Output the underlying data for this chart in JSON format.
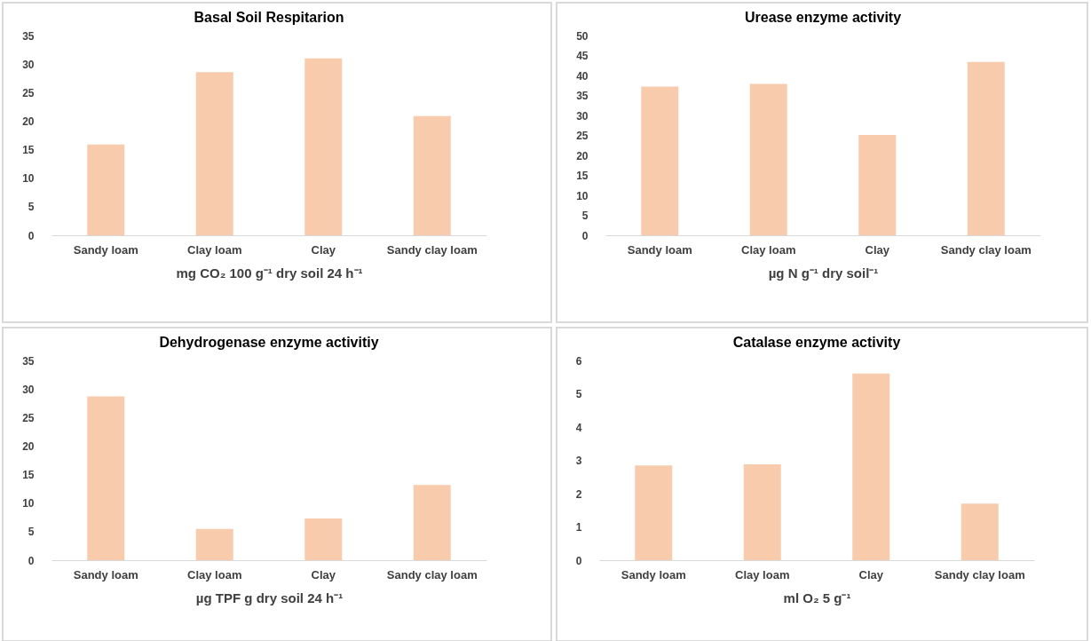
{
  "chart_data": [
    {
      "type": "bar",
      "title": "Basal Soil Respitarion",
      "xlabel": "mg CO₂ 100 g⁻¹  dry soil 24 h⁻¹",
      "categories": [
        "Sandy loam",
        "Clay loam",
        "Clay",
        "Sandy clay loam"
      ],
      "values": [
        15.9,
        28.6,
        31.0,
        20.9
      ],
      "color": "#f8cbad",
      "ylim": [
        0,
        35
      ],
      "yticks": [
        0,
        5,
        10,
        15,
        20,
        25,
        30,
        35
      ]
    },
    {
      "type": "bar",
      "title": "Urease enzyme activity",
      "xlabel": "µg N g⁻¹ dry soil⁻¹",
      "categories": [
        "Sandy loam",
        "Clay loam",
        "Clay",
        "Sandy clay loam"
      ],
      "values": [
        37.2,
        37.9,
        25.1,
        43.4
      ],
      "color": "#f8cbad",
      "ylim": [
        0,
        50
      ],
      "yticks": [
        0,
        5,
        10,
        15,
        20,
        25,
        30,
        35,
        40,
        45,
        50
      ]
    },
    {
      "type": "bar",
      "title": "Dehydrogenase enzyme activitiy",
      "xlabel": "µg TPF g dry soil 24 h⁻¹",
      "categories": [
        "Sandy loam",
        "Clay loam",
        "Clay",
        "Sandy clay loam"
      ],
      "values": [
        28.7,
        5.5,
        7.3,
        13.2
      ],
      "color": "#f8cbad",
      "ylim": [
        0,
        35
      ],
      "yticks": [
        0,
        5,
        10,
        15,
        20,
        25,
        30,
        35
      ]
    },
    {
      "type": "bar",
      "title": "Catalase enzyme activity",
      "xlabel": "ml O₂ 5 g⁻¹",
      "categories": [
        "Sandy loam",
        "Clay loam",
        "Clay",
        "Sandy clay loam"
      ],
      "values": [
        2.85,
        2.88,
        5.61,
        1.7
      ],
      "color": "#f8cbad",
      "ylim": [
        0,
        6
      ],
      "yticks": [
        0,
        1,
        2,
        3,
        4,
        5,
        6
      ]
    }
  ]
}
